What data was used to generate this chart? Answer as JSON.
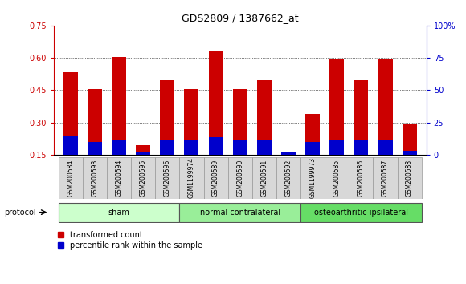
{
  "title": "GDS2809 / 1387662_at",
  "samples": [
    "GSM200584",
    "GSM200593",
    "GSM200594",
    "GSM200595",
    "GSM200596",
    "GSM1199974",
    "GSM200589",
    "GSM200590",
    "GSM200591",
    "GSM200592",
    "GSM1199973",
    "GSM200585",
    "GSM200586",
    "GSM200587",
    "GSM200588"
  ],
  "red_values": [
    0.535,
    0.455,
    0.605,
    0.195,
    0.495,
    0.455,
    0.635,
    0.455,
    0.495,
    0.165,
    0.34,
    0.595,
    0.495,
    0.595,
    0.295
  ],
  "blue_values": [
    0.235,
    0.21,
    0.22,
    0.16,
    0.22,
    0.22,
    0.23,
    0.215,
    0.22,
    0.16,
    0.21,
    0.22,
    0.22,
    0.215,
    0.17
  ],
  "groups": [
    {
      "label": "sham",
      "start": 0,
      "end": 5,
      "color": "#ccffcc"
    },
    {
      "label": "normal contralateral",
      "start": 5,
      "end": 10,
      "color": "#99ee99"
    },
    {
      "label": "osteoarthritic ipsilateral",
      "start": 10,
      "end": 15,
      "color": "#66dd66"
    }
  ],
  "ylim_left": [
    0.15,
    0.75
  ],
  "ylim_right": [
    0,
    100
  ],
  "yticks_left": [
    0.15,
    0.3,
    0.45,
    0.6,
    0.75
  ],
  "yticks_right": [
    0,
    25,
    50,
    75,
    100
  ],
  "ytick_labels_left": [
    "0.15",
    "0.30",
    "0.45",
    "0.60",
    "0.75"
  ],
  "ytick_labels_right": [
    "0",
    "25",
    "50",
    "75",
    "100%"
  ],
  "left_axis_color": "#cc0000",
  "right_axis_color": "#0000cc",
  "bar_width": 0.6,
  "red_bar_color": "#cc0000",
  "blue_bar_color": "#0000cc",
  "plot_bg_color": "#ffffff",
  "tick_label_bg": "#d8d8d8",
  "protocol_label": "protocol",
  "legend_items": [
    {
      "color": "#cc0000",
      "label": "transformed count"
    },
    {
      "color": "#0000cc",
      "label": "percentile rank within the sample"
    }
  ]
}
